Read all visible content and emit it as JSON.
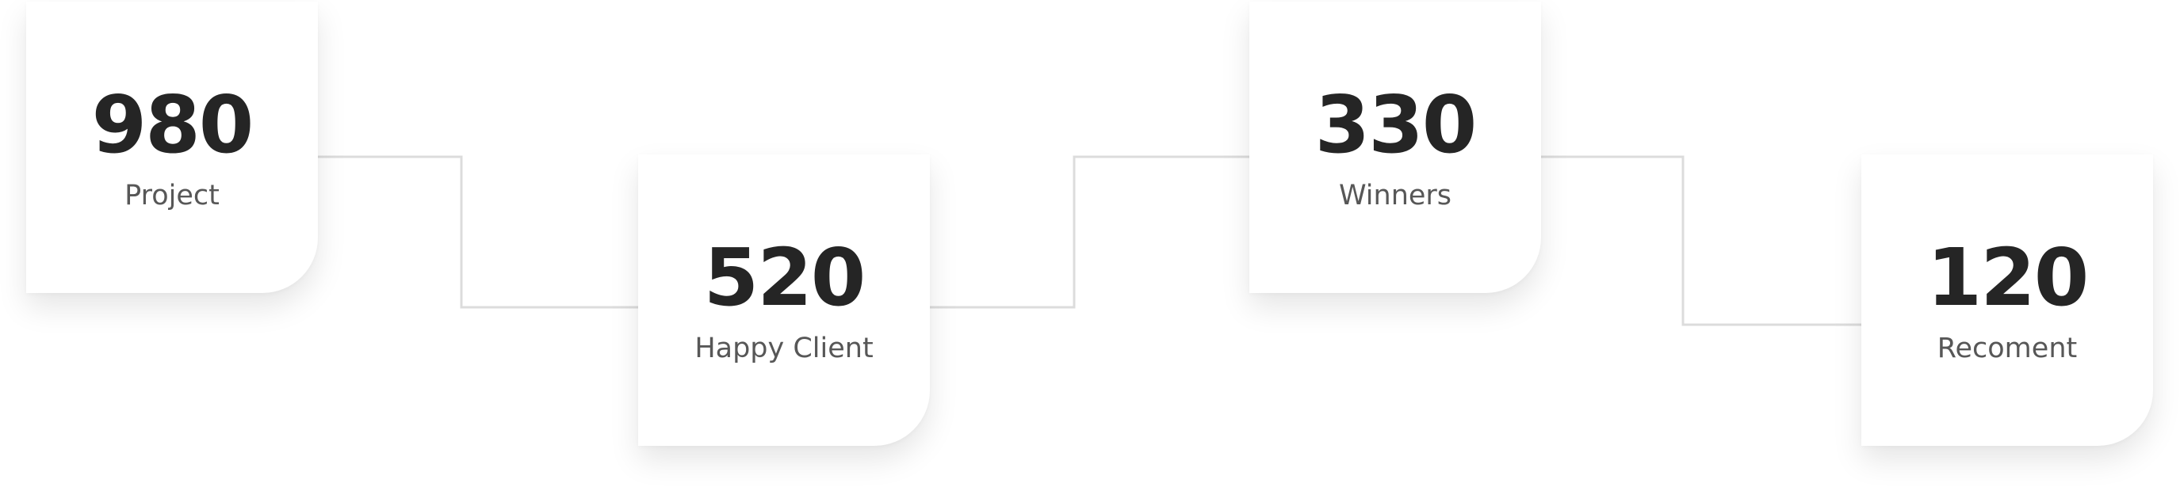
{
  "stats": [
    {
      "value": "980",
      "label": "Project"
    },
    {
      "value": "520",
      "label": "Happy Client"
    },
    {
      "value": "330",
      "label": "Winners"
    },
    {
      "value": "120",
      "label": "Recoment"
    }
  ],
  "colors": {
    "card_background": "#ffffff",
    "value_text": "#252525",
    "label_text": "#575757",
    "connector_line": "#dcdcdc"
  }
}
